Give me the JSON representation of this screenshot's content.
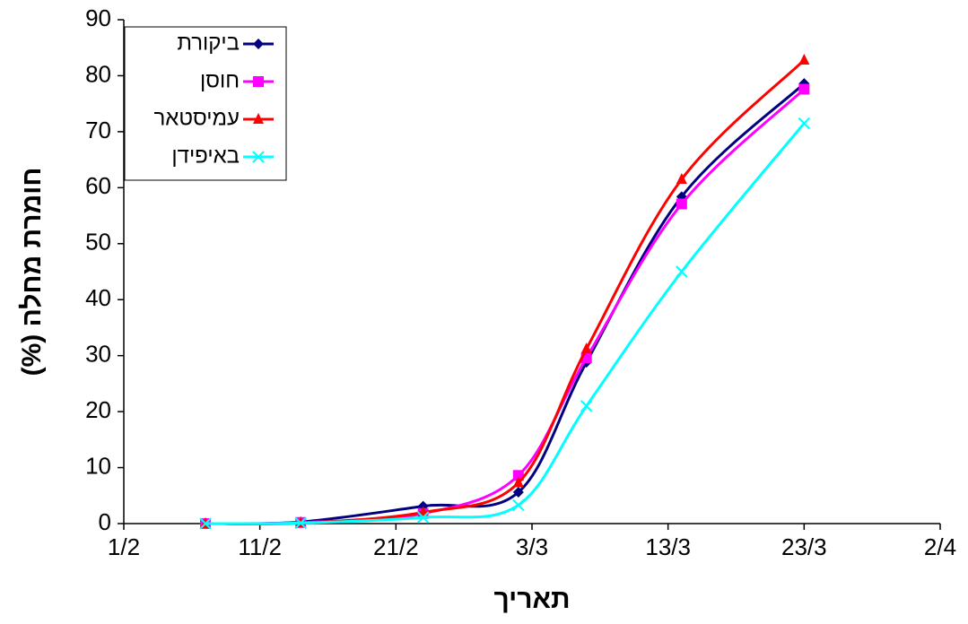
{
  "chart_data": {
    "type": "line",
    "y_label": "חומרת מחלה (%)",
    "x_label": "תאריך",
    "xlim": [
      0,
      60
    ],
    "xticks": [
      {
        "value": 0,
        "label": "1/2"
      },
      {
        "value": 10,
        "label": "11/2"
      },
      {
        "value": 20,
        "label": "21/2"
      },
      {
        "value": 30,
        "label": "3/3"
      },
      {
        "value": 40,
        "label": "13/3"
      },
      {
        "value": 50,
        "label": "23/3"
      },
      {
        "value": 60,
        "label": "2/4"
      }
    ],
    "ylim": [
      0,
      90
    ],
    "yticks": [
      0,
      10,
      20,
      30,
      40,
      50,
      60,
      70,
      80,
      90
    ],
    "x": [
      6,
      13,
      22,
      29,
      34,
      41,
      50
    ],
    "smooth": true,
    "legend": "upper left",
    "series": [
      {
        "name": "ביקורת",
        "color": "#000080",
        "marker": "diamond",
        "values": [
          0,
          0.3,
          3.1,
          5.6,
          28.8,
          58.4,
          78.6
        ]
      },
      {
        "name": "חוסן",
        "color": "#ff00ff",
        "marker": "square",
        "values": [
          0,
          0.2,
          1.8,
          8.6,
          29.6,
          57.1,
          77.6
        ]
      },
      {
        "name": "עמיסטאר",
        "color": "#ff0000",
        "marker": "triangle",
        "values": [
          0,
          0.1,
          2.0,
          7.3,
          31.2,
          61.5,
          82.8
        ]
      },
      {
        "name": "באיפידן",
        "color": "#00ffff",
        "marker": "x",
        "values": [
          0,
          0.1,
          1.1,
          3.3,
          21.0,
          45.0,
          71.5
        ]
      }
    ]
  }
}
